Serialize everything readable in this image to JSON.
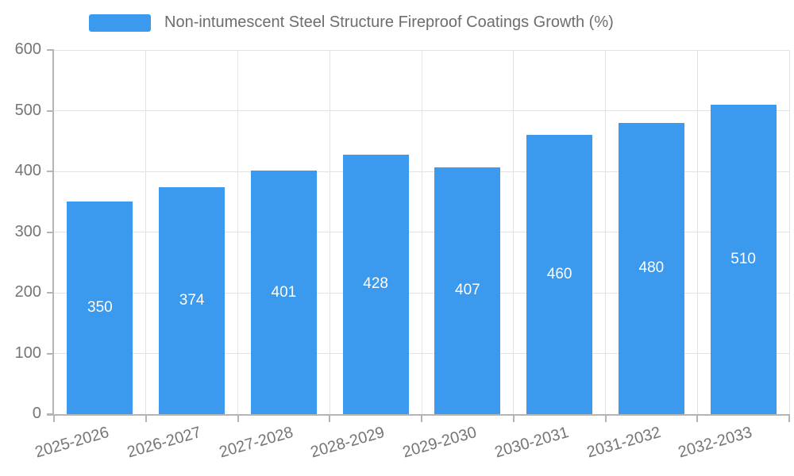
{
  "legend": {
    "label": "Non-intumescent Steel Structure Fireproof Coatings Growth (%)"
  },
  "colors": {
    "bar": "#3b99ee",
    "grid": "#e3e3e3",
    "axis": "#b4b4b4",
    "tick_label": "#757575",
    "legend_text": "#6d6d6d",
    "value_label": "#ffffff",
    "background": "#ffffff"
  },
  "chart_data": {
    "type": "bar",
    "title": "",
    "xlabel": "",
    "ylabel": "",
    "categories": [
      "2025-2026",
      "2026-2027",
      "2027-2028",
      "2028-2029",
      "2029-2030",
      "2030-2031",
      "2031-2032",
      "2032-2033"
    ],
    "values": [
      350,
      374,
      401,
      428,
      407,
      460,
      480,
      510
    ],
    "series_name": "Non-intumescent Steel Structure Fireproof Coatings Growth (%)",
    "ylim": [
      0,
      600
    ],
    "yticks": [
      0,
      100,
      200,
      300,
      400,
      500,
      600
    ],
    "grid": true,
    "legend_position": "top",
    "value_label_position": "inside-center"
  }
}
